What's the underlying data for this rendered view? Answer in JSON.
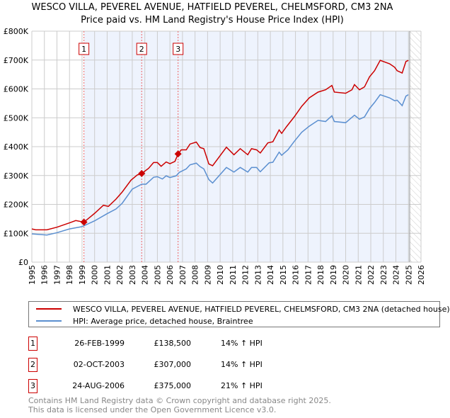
{
  "chart_data": {
    "type": "line",
    "title": "WESCO VILLA, PEVEREL AVENUE, HATFIELD PEVEREL, CHELMSFORD, CM3 2NA",
    "subtitle": "Price paid vs. HM Land Registry's House Price Index (HPI)",
    "xlim": [
      1995,
      2026
    ],
    "ylim": [
      0,
      800000
    ],
    "x_ticks": [
      "1995",
      "1996",
      "1997",
      "1998",
      "1999",
      "2000",
      "2001",
      "2002",
      "2003",
      "2004",
      "2005",
      "2006",
      "2007",
      "2008",
      "2009",
      "2010",
      "2011",
      "2012",
      "2013",
      "2014",
      "2015",
      "2016",
      "2017",
      "2018",
      "2019",
      "2020",
      "2021",
      "2022",
      "2023",
      "2024",
      "2025",
      "2026"
    ],
    "y_ticks": [
      {
        "v": 0,
        "label": "£0"
      },
      {
        "v": 100000,
        "label": "£100K"
      },
      {
        "v": 200000,
        "label": "£200K"
      },
      {
        "v": 300000,
        "label": "£300K"
      },
      {
        "v": 400000,
        "label": "£400K"
      },
      {
        "v": 500000,
        "label": "£500K"
      },
      {
        "v": 600000,
        "label": "£600K"
      },
      {
        "v": 700000,
        "label": "£700K"
      },
      {
        "v": 800000,
        "label": "£800K"
      }
    ],
    "grid": true,
    "shaded_from": 1999.15,
    "data_end": 2025.1,
    "series": [
      {
        "name": "WESCO VILLA, PEVEREL AVENUE, HATFIELD PEVEREL, CHELMSFORD, CM3 2NA (detached house)",
        "color": "#cc0000",
        "x": [
          1995.0,
          1995.3,
          1996.2,
          1997.0,
          1998.0,
          1998.5,
          1999.15,
          2000.0,
          2000.7,
          2001.1,
          2001.7,
          2002.2,
          2002.9,
          2003.4,
          2003.75,
          2004.3,
          2004.7,
          2005.0,
          2005.3,
          2005.7,
          2006.0,
          2006.4,
          2006.65,
          2006.9,
          2007.3,
          2007.6,
          2008.1,
          2008.4,
          2008.7,
          2009.1,
          2009.4,
          2010.5,
          2011.1,
          2011.6,
          2012.2,
          2012.5,
          2012.9,
          2013.2,
          2013.8,
          2014.2,
          2014.7,
          2014.9,
          2015.3,
          2015.9,
          2016.5,
          2017.1,
          2017.8,
          2018.4,
          2018.9,
          2019.1,
          2020.0,
          2020.5,
          2020.7,
          2021.1,
          2021.5,
          2021.9,
          2022.3,
          2022.75,
          2023.5,
          2023.9,
          2024.1,
          2024.5,
          2024.8,
          2025.0
        ],
        "y": [
          115,
          112,
          112,
          121,
          136,
          144,
          138.5,
          169,
          197,
          193,
          218,
          243,
          284,
          302,
          307,
          325,
          345,
          345,
          332,
          347,
          341,
          349,
          375,
          389,
          389,
          409,
          416,
          397,
          393,
          340,
          334,
          398,
          372,
          393,
          372,
          393,
          389,
          378,
          413,
          417,
          458,
          446,
          470,
          503,
          540,
          569,
          589,
          597,
          612,
          589,
          585,
          597,
          615,
          597,
          607,
          642,
          663,
          699,
          687,
          675,
          663,
          655,
          695,
          699
        ]
      },
      {
        "name": "HPI: Average price, detached house, Braintree",
        "color": "#5b8fd0",
        "x": [
          1995.0,
          1996.2,
          1997.0,
          1998.0,
          1999.0,
          2000.0,
          2001.0,
          2001.7,
          2002.2,
          2003.0,
          2003.4,
          2003.75,
          2004.1,
          2004.7,
          2005.0,
          2005.4,
          2005.7,
          2006.0,
          2006.5,
          2006.75,
          2007.3,
          2007.6,
          2008.1,
          2008.4,
          2008.7,
          2009.1,
          2009.4,
          2010.5,
          2011.1,
          2011.6,
          2012.2,
          2012.5,
          2012.9,
          2013.2,
          2013.9,
          2014.2,
          2014.7,
          2014.9,
          2015.4,
          2015.9,
          2016.5,
          2017.1,
          2017.8,
          2018.4,
          2018.9,
          2019.1,
          2020.0,
          2020.7,
          2021.1,
          2021.5,
          2021.9,
          2022.3,
          2022.75,
          2023.5,
          2023.9,
          2024.1,
          2024.5,
          2024.8,
          2025.0
        ],
        "y": [
          98,
          94,
          102,
          115,
          123,
          143,
          168,
          184,
          204,
          253,
          262,
          270,
          270,
          294,
          296,
          288,
          299,
          293,
          299,
          311,
          323,
          337,
          343,
          331,
          323,
          286,
          274,
          328,
          312,
          328,
          312,
          328,
          328,
          313,
          344,
          346,
          381,
          370,
          389,
          418,
          450,
          471,
          491,
          487,
          507,
          487,
          483,
          509,
          495,
          503,
          532,
          553,
          580,
          569,
          559,
          561,
          542,
          575,
          580
        ]
      }
    ],
    "sales": [
      {
        "n": "1",
        "x": 1999.15,
        "y": 138.5,
        "date": "26-FEB-1999",
        "price": "£138,500",
        "hpi": "14% ↑ HPI"
      },
      {
        "n": "2",
        "x": 2003.75,
        "y": 307,
        "date": "02-OCT-2003",
        "price": "£307,000",
        "hpi": "14% ↑ HPI"
      },
      {
        "n": "3",
        "x": 2006.65,
        "y": 375,
        "date": "24-AUG-2006",
        "price": "£375,000",
        "hpi": "21% ↑ HPI"
      }
    ]
  },
  "legend": {
    "red": "WESCO VILLA, PEVEREL AVENUE, HATFIELD PEVEREL, CHELMSFORD, CM3 2NA (detached house)",
    "blue": "HPI: Average price, detached house, Braintree"
  },
  "footer": {
    "line1": "Contains HM Land Registry data © Crown copyright and database right 2025.",
    "line2": "This data is licensed under the Open Government Licence v3.0."
  }
}
